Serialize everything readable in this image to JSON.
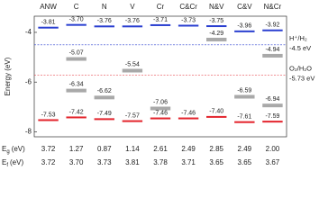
{
  "chart_data": {
    "type": "band_levels",
    "y_label": "Energy (eV)",
    "categories": [
      "ANW",
      "C",
      "N",
      "V",
      "Cr",
      "C&Cr",
      "N&V",
      "C&V",
      "N&Cr"
    ],
    "series": [
      {
        "name": "CB",
        "color": "#2a3fd0",
        "values": [
          -3.81,
          -3.7,
          -3.76,
          -3.76,
          -3.71,
          -3.73,
          -3.75,
          -3.96,
          -3.92
        ],
        "value_labels": [
          "-3.81",
          "-3.70",
          "-3.76",
          "-3.76",
          "-3.71",
          "-3.73",
          "-3.75",
          "-3.96",
          "-3.92"
        ]
      },
      {
        "name": "VB",
        "color": "#e3232b",
        "values": [
          -7.53,
          -7.42,
          -7.49,
          -7.57,
          -7.46,
          -7.46,
          -7.4,
          -7.61,
          -7.59
        ],
        "value_labels": [
          "-7.53",
          "-7.42",
          "-7.49",
          "-7.57",
          "-7.46",
          "-7.46",
          "-7.40",
          "-7.61",
          "-7.59"
        ]
      }
    ],
    "impurity_color": "#a9a9a9",
    "impurity_levels": [
      [],
      [
        -5.07,
        -6.34
      ],
      [
        -6.62
      ],
      [
        -5.54
      ],
      [
        -7.06
      ],
      [],
      [
        -4.29
      ],
      [
        -6.59
      ],
      [
        -4.94,
        -6.94
      ]
    ],
    "reference_lines": [
      {
        "name": "H⁺/H₂",
        "value": -4.5,
        "label": "-4.5 eV",
        "color": "#2a3fd0"
      },
      {
        "name": "O₂/H₂O",
        "value": -5.73,
        "label": "-5.73 eV",
        "color": "#e3232b"
      }
    ],
    "ylim": [
      -8.2,
      -3.35
    ],
    "yticks": [
      -4,
      -6,
      -8
    ],
    "table": {
      "rows": [
        {
          "symbol": "E",
          "subscript": "g",
          "unit": "(eV)",
          "values": [
            "3.72",
            "1.27",
            "0.87",
            "1.14",
            "2.61",
            "2.49",
            "2.85",
            "2.49",
            "2.00"
          ]
        },
        {
          "symbol": "E",
          "subscript": "f",
          "unit": "(eV)",
          "values": [
            "3.72",
            "3.70",
            "3.73",
            "3.81",
            "3.78",
            "3.71",
            "3.65",
            "3.65",
            "3.67"
          ]
        }
      ]
    }
  }
}
